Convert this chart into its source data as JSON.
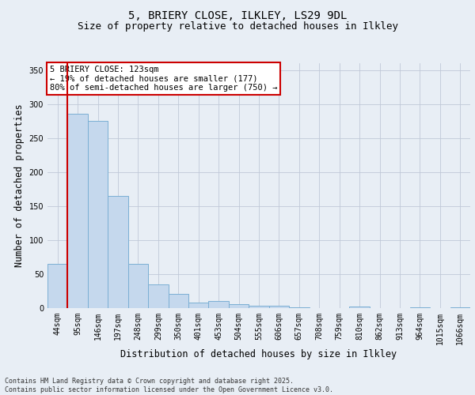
{
  "title_line1": "5, BRIERY CLOSE, ILKLEY, LS29 9DL",
  "title_line2": "Size of property relative to detached houses in Ilkley",
  "xlabel": "Distribution of detached houses by size in Ilkley",
  "ylabel": "Number of detached properties",
  "bar_color": "#c5d8ed",
  "bar_edge_color": "#7bafd4",
  "grid_color": "#c0c8d8",
  "background_color": "#e8eef5",
  "vline_color": "#cc0000",
  "annotation_text": "5 BRIERY CLOSE: 123sqm\n← 19% of detached houses are smaller (177)\n80% of semi-detached houses are larger (750) →",
  "annotation_box_color": "#ffffff",
  "annotation_box_edge": "#cc0000",
  "categories": [
    "44sqm",
    "95sqm",
    "146sqm",
    "197sqm",
    "248sqm",
    "299sqm",
    "350sqm",
    "401sqm",
    "453sqm",
    "504sqm",
    "555sqm",
    "606sqm",
    "657sqm",
    "708sqm",
    "759sqm",
    "810sqm",
    "862sqm",
    "913sqm",
    "964sqm",
    "1015sqm",
    "1066sqm"
  ],
  "values": [
    65,
    286,
    275,
    165,
    65,
    35,
    21,
    8,
    10,
    6,
    4,
    3,
    1,
    0,
    0,
    2,
    0,
    0,
    1,
    0,
    1
  ],
  "ylim": [
    0,
    360
  ],
  "yticks": [
    0,
    50,
    100,
    150,
    200,
    250,
    300,
    350
  ],
  "footnote": "Contains HM Land Registry data © Crown copyright and database right 2025.\nContains public sector information licensed under the Open Government Licence v3.0.",
  "title_fontsize": 10,
  "subtitle_fontsize": 9,
  "tick_fontsize": 7,
  "label_fontsize": 8.5,
  "annot_fontsize": 7.5,
  "footnote_fontsize": 6
}
